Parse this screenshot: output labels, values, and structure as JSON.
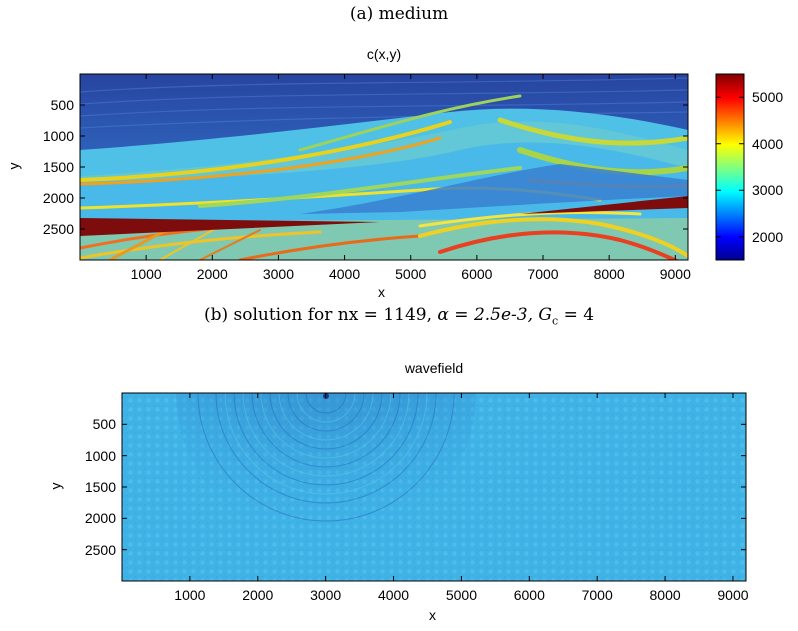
{
  "caption_a": "(a) medium",
  "caption_b": {
    "lead": "(b) solution for nx = 1149,",
    "alpha": "α = 2.5e-3,",
    "g": "G",
    "sub": "c",
    "rest": " = 4"
  },
  "chart_data": [
    {
      "type": "heatmap",
      "title": "c(x,y)",
      "xlabel": "x",
      "ylabel": "y",
      "xlim": [
        0,
        9192
      ],
      "ylim": [
        3000,
        0
      ],
      "y_reversed": true,
      "xticks": [
        1000,
        2000,
        3000,
        4000,
        5000,
        6000,
        7000,
        8000,
        9000
      ],
      "yticks": [
        500,
        1000,
        1500,
        2000,
        2500
      ],
      "colorbar": {
        "range": [
          1500,
          5500
        ],
        "ticks": [
          2000,
          3000,
          4000,
          5000
        ],
        "colormap": "jet"
      },
      "description_values": {
        "shallow_velocity": 1800,
        "deep_velocity": 4000,
        "salt_wedge_velocity": 5500
      }
    },
    {
      "type": "heatmap",
      "title": "wavefield",
      "xlabel": "x",
      "ylabel": "y",
      "xlim": [
        0,
        9192
      ],
      "ylim": [
        3000,
        0
      ],
      "y_reversed": true,
      "xticks": [
        1000,
        2000,
        3000,
        4000,
        5000,
        6000,
        7000,
        8000,
        9000
      ],
      "yticks": [
        500,
        1000,
        1500,
        2000,
        2500
      ],
      "source_x": 3000,
      "source_y": 0
    }
  ],
  "colors": {
    "background": "#3ab0e4",
    "deep_blue": "#2a4a9e",
    "salt": "#7d0c0c"
  }
}
